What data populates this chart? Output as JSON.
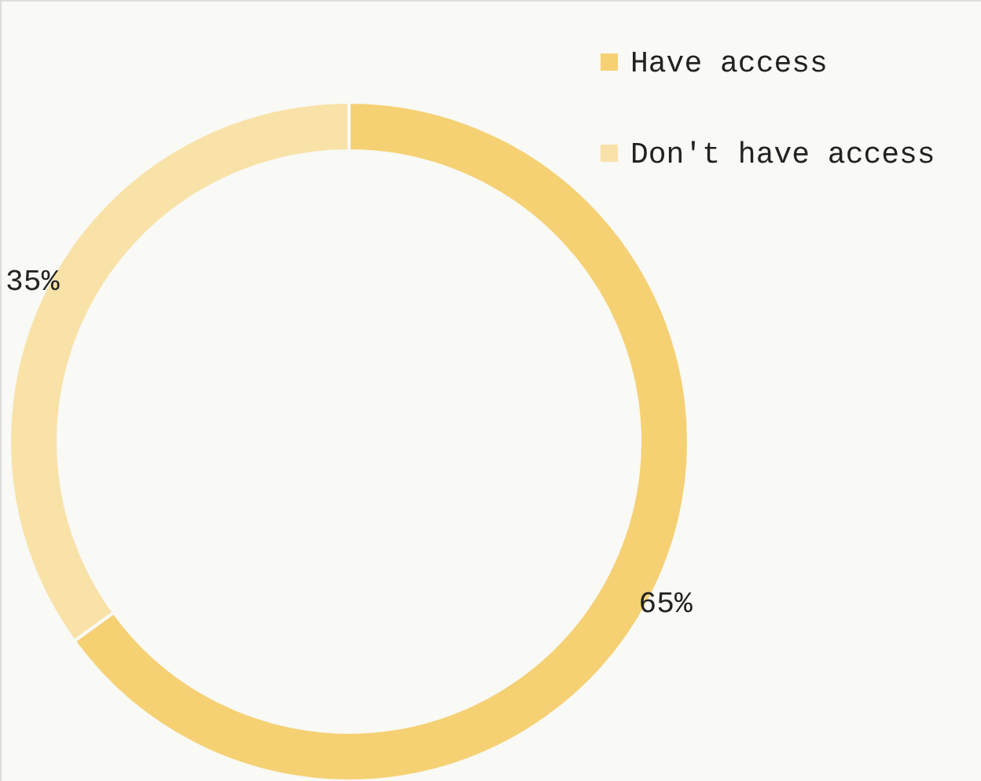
{
  "chart_data": {
    "type": "donut",
    "categories": [
      "Have access",
      "Don't have access"
    ],
    "values": [
      65,
      35
    ],
    "colors": [
      "#f5d174",
      "#f8e2a8"
    ],
    "value_labels": [
      "65%",
      "35%"
    ],
    "legend": "top right"
  }
}
